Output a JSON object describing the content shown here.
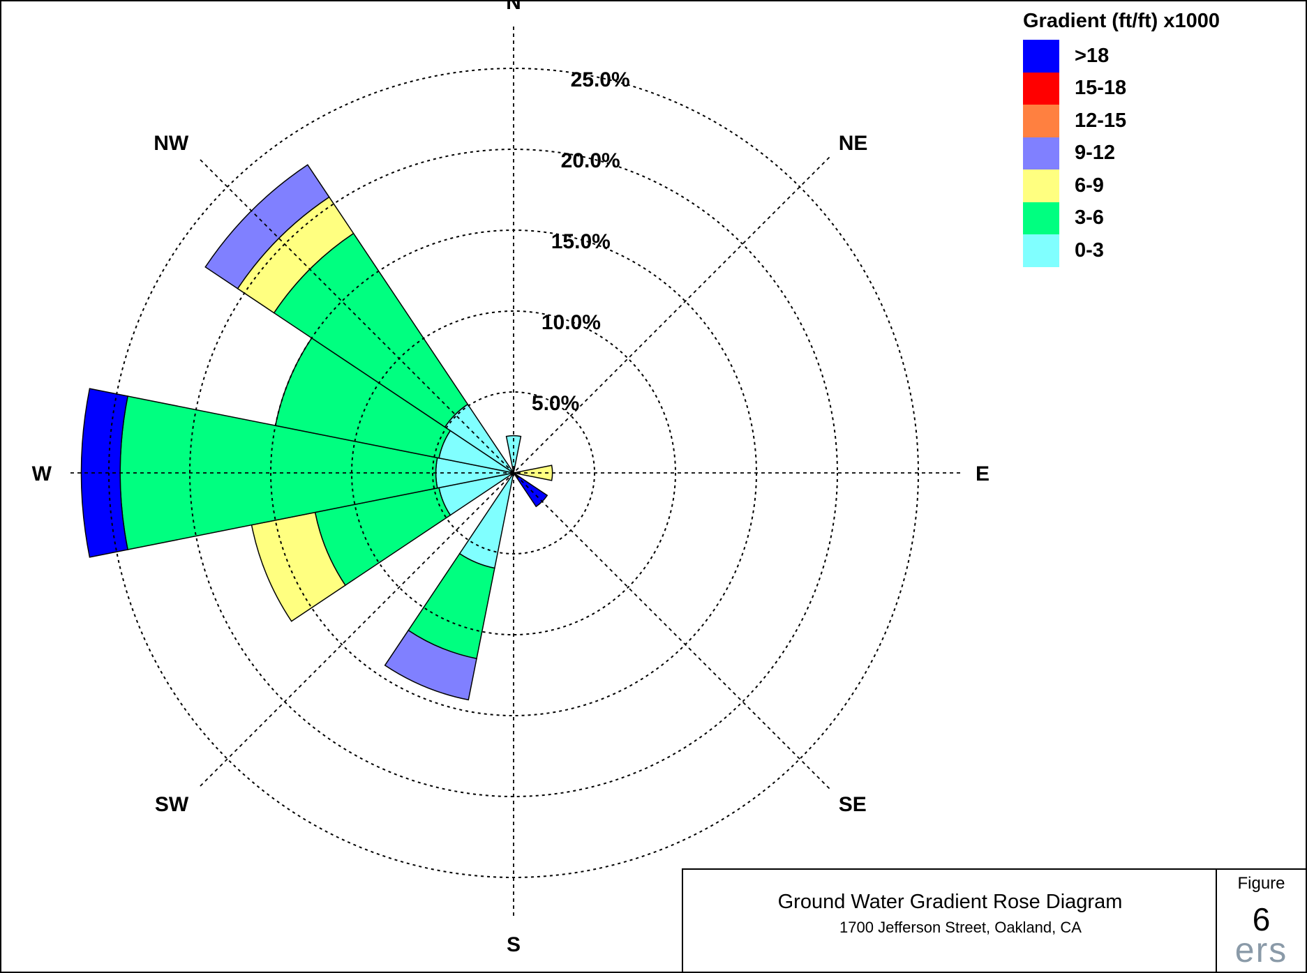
{
  "chart_data": {
    "type": "polar-rose",
    "title": "Ground Water Gradient Rose Diagram",
    "subtitle": "1700 Jefferson Street, Oakland, CA",
    "rmax": 25,
    "rings": [
      5,
      10,
      15,
      20,
      25
    ],
    "ring_labels": [
      "5.0%",
      "10.0%",
      "15.0%",
      "20.0%",
      "25.0%"
    ],
    "directions": [
      {
        "name": "N",
        "label": "N",
        "angle": 0
      },
      {
        "name": "NE",
        "label": "NE",
        "angle": 45
      },
      {
        "name": "E",
        "label": "E",
        "angle": 90
      },
      {
        "name": "SE",
        "label": "SE",
        "angle": 135
      },
      {
        "name": "S",
        "label": "S",
        "angle": 180
      },
      {
        "name": "SW",
        "label": "SW",
        "angle": 225
      },
      {
        "name": "W",
        "label": "W",
        "angle": 270
      },
      {
        "name": "NW",
        "label": "NW",
        "angle": 315
      }
    ],
    "legend_title": "Gradient (ft/ft) x1000",
    "bins": [
      {
        "label": ">18",
        "color": "#0000ff"
      },
      {
        "label": "15-18",
        "color": "#ff0000"
      },
      {
        "label": "12-15",
        "color": "#ff8040"
      },
      {
        "label": "9-12",
        "color": "#8080ff"
      },
      {
        "label": "6-9",
        "color": "#ffff80"
      },
      {
        "label": "3-6",
        "color": "#00ff80"
      },
      {
        "label": "0-3",
        "color": "#80ffff"
      }
    ],
    "petal_width_deg": 22.5,
    "petals": [
      {
        "direction": "N",
        "angle": 0,
        "segments": [
          {
            "bin": "0-3",
            "value": 2.3
          }
        ]
      },
      {
        "direction": "E",
        "angle": 90,
        "segments": [
          {
            "bin": "6-9",
            "value": 2.4
          }
        ]
      },
      {
        "direction": "SE",
        "angle": 135,
        "segments": [
          {
            "bin": ">18",
            "value": 2.5
          }
        ]
      },
      {
        "direction": "SSW",
        "angle": 202.5,
        "segments": [
          {
            "bin": "0-3",
            "value": 6.0
          },
          {
            "bin": "3-6",
            "value": 11.7
          },
          {
            "bin": "9-12",
            "value": 14.3
          }
        ]
      },
      {
        "direction": "WSW",
        "angle": 247.5,
        "segments": [
          {
            "bin": "0-3",
            "value": 4.7
          },
          {
            "bin": "3-6",
            "value": 12.5
          },
          {
            "bin": "6-9",
            "value": 16.5
          }
        ]
      },
      {
        "direction": "W",
        "angle": 270,
        "segments": [
          {
            "bin": "0-3",
            "value": 4.8
          },
          {
            "bin": "3-6",
            "value": 24.3
          },
          {
            "bin": "9-12",
            "value": 24.3
          },
          {
            "bin": ">18",
            "value": 26.7
          }
        ]
      },
      {
        "direction": "WNW",
        "angle": 292.5,
        "segments": [
          {
            "bin": "0-3",
            "value": 4.7
          },
          {
            "bin": "3-6",
            "value": 15.0
          }
        ]
      },
      {
        "direction": "NW",
        "angle": 315,
        "segments": [
          {
            "bin": "0-3",
            "value": 5.1
          },
          {
            "bin": "3-6",
            "value": 17.8
          },
          {
            "bin": "6-9",
            "value": 20.5
          },
          {
            "bin": "9-12",
            "value": 22.9
          }
        ]
      }
    ]
  },
  "title_block": {
    "title": "Ground Water Gradient Rose Diagram",
    "subtitle": "1700 Jefferson Street, Oakland, CA",
    "figure_label": "Figure",
    "figure_number": "6",
    "logo_text": "ers"
  }
}
